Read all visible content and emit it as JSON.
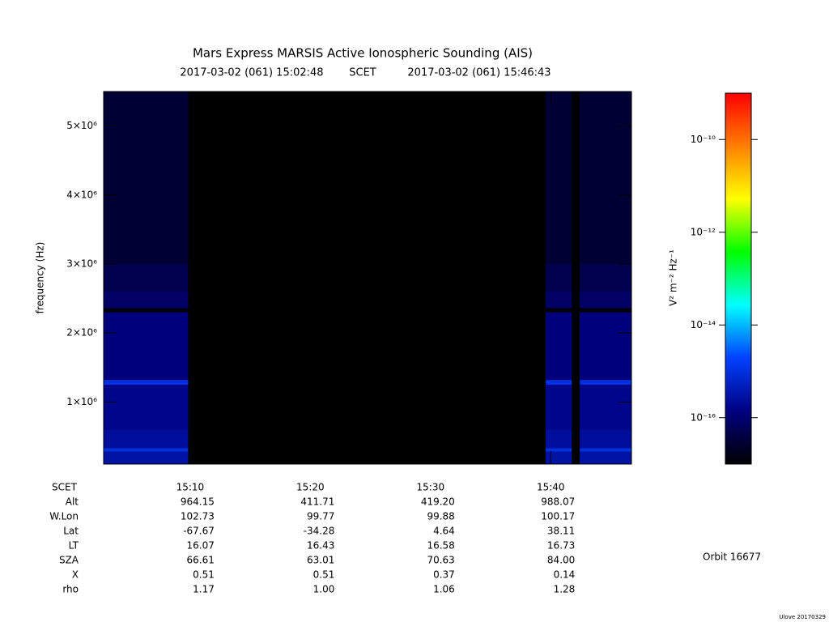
{
  "chart_data": {
    "type": "spectrogram",
    "title": "Mars Express MARSIS Active Ionospheric Sounding (AIS)",
    "subtitle_start": "2017-03-02 (061) 15:02:48",
    "subtitle_mid": "SCET",
    "subtitle_end": "2017-03-02 (061) 15:46:43",
    "ylabel": "frequency (Hz)",
    "xlim": [
      "15:02:48",
      "15:46:43"
    ],
    "xticks": [
      "15:10",
      "15:20",
      "15:30",
      "15:40"
    ],
    "ylim": [
      100000,
      5500000
    ],
    "yticks": [
      {
        "value": 1000000,
        "label": "1×10⁶"
      },
      {
        "value": 2000000,
        "label": "2×10⁶"
      },
      {
        "value": 3000000,
        "label": "3×10⁶"
      },
      {
        "value": 4000000,
        "label": "4×10⁶"
      },
      {
        "value": 5000000,
        "label": "5×10⁶"
      }
    ],
    "columns": [
      {
        "start": "15:02:48",
        "end": "15:09:50"
      },
      {
        "start": "15:39:35",
        "end": "15:41:45"
      },
      {
        "start": "15:42:25",
        "end": "15:46:43"
      }
    ],
    "spectrum": {
      "edges": [
        100000,
        280000,
        330000,
        600000,
        1250000,
        1320000,
        2300000,
        2360000,
        2600000,
        3000000,
        5500000
      ],
      "z": [
        3e-16,
        1e-15,
        2.5e-16,
        1.8e-16,
        1e-15,
        1.3e-16,
        1e-17,
        8e-17,
        5e-17,
        3e-17
      ]
    },
    "colorbar_label": "V² m⁻² Hz⁻¹",
    "zlim": [
      1e-17,
      1e-09
    ],
    "zlog": true,
    "zticks": [
      {
        "value": 1e-10,
        "label": "10⁻¹⁰"
      },
      {
        "value": 1e-12,
        "label": "10⁻¹²"
      },
      {
        "value": 1e-14,
        "label": "10⁻¹⁴"
      },
      {
        "value": 1e-16,
        "label": "10⁻¹⁶"
      }
    ],
    "colormap": [
      "#000000",
      "#000080",
      "#0040ff",
      "#00ffff",
      "#00ff00",
      "#ffff00",
      "#ff8000",
      "#ff0000"
    ],
    "background": "#000000",
    "ephemeris_x_label": "SCET",
    "ephemeris": [
      {
        "label": "Alt",
        "values": [
          "964.15",
          "411.71",
          "419.20",
          "988.07"
        ]
      },
      {
        "label": "W.Lon",
        "values": [
          "102.73",
          "99.77",
          "99.88",
          "100.17"
        ]
      },
      {
        "label": "Lat",
        "values": [
          "-67.67",
          "-34.28",
          "4.64",
          "38.11"
        ]
      },
      {
        "label": "LT",
        "values": [
          "16.07",
          "16.43",
          "16.58",
          "16.73"
        ]
      },
      {
        "label": "SZA",
        "values": [
          "66.61",
          "63.01",
          "70.63",
          "84.00"
        ]
      },
      {
        "label": "X",
        "values": [
          "0.51",
          "0.51",
          "0.37",
          "0.14"
        ]
      },
      {
        "label": "rho",
        "values": [
          "1.17",
          "1.00",
          "1.06",
          "1.28"
        ]
      }
    ],
    "annotation": "Orbit 16677",
    "credit": "Ulove 20170329"
  }
}
